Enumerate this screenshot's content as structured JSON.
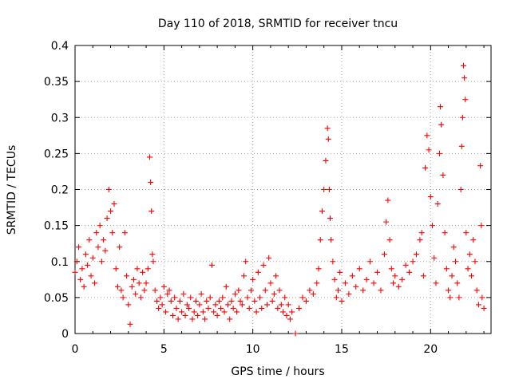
{
  "chart_data": {
    "type": "scatter",
    "title": "Day 110 of 2018, SRMTID for receiver tncu",
    "xlabel": "GPS time / hours",
    "ylabel": "SRMTID / TECUs",
    "xlim": [
      0,
      23.4
    ],
    "ylim": [
      0,
      0.4
    ],
    "grid": true,
    "marker": "plus",
    "color": "#ff0000",
    "x_ticks": [
      {
        "value": 0,
        "label": "0"
      },
      {
        "value": 5,
        "label": "5"
      },
      {
        "value": 10,
        "label": "10"
      },
      {
        "value": 15,
        "label": "15"
      },
      {
        "value": 20,
        "label": "20"
      }
    ],
    "y_ticks": [
      {
        "value": 0,
        "label": "0"
      },
      {
        "value": 0.05,
        "label": "0.05"
      },
      {
        "value": 0.1,
        "label": "0.1"
      },
      {
        "value": 0.15,
        "label": "0.15"
      },
      {
        "value": 0.2,
        "label": "0.2"
      },
      {
        "value": 0.25,
        "label": "0.25"
      },
      {
        "value": 0.3,
        "label": "0.3"
      },
      {
        "value": 0.35,
        "label": "0.35"
      },
      {
        "value": 0.4,
        "label": "0.4"
      }
    ],
    "series": [
      {
        "name": "SRMTID",
        "points": [
          [
            0.0,
            0.085
          ],
          [
            0.1,
            0.1
          ],
          [
            0.2,
            0.12
          ],
          [
            0.3,
            0.075
          ],
          [
            0.4,
            0.09
          ],
          [
            0.5,
            0.065
          ],
          [
            0.6,
            0.11
          ],
          [
            0.7,
            0.095
          ],
          [
            0.8,
            0.13
          ],
          [
            0.9,
            0.08
          ],
          [
            1.0,
            0.105
          ],
          [
            1.1,
            0.07
          ],
          [
            1.2,
            0.14
          ],
          [
            1.3,
            0.12
          ],
          [
            1.4,
            0.15
          ],
          [
            1.5,
            0.1
          ],
          [
            1.6,
            0.13
          ],
          [
            1.7,
            0.115
          ],
          [
            1.8,
            0.16
          ],
          [
            1.9,
            0.2
          ],
          [
            2.0,
            0.17
          ],
          [
            2.1,
            0.14
          ],
          [
            2.2,
            0.18
          ],
          [
            2.3,
            0.09
          ],
          [
            2.4,
            0.065
          ],
          [
            2.5,
            0.12
          ],
          [
            2.6,
            0.06
          ],
          [
            2.7,
            0.05
          ],
          [
            2.8,
            0.14
          ],
          [
            2.9,
            0.08
          ],
          [
            3.0,
            0.04
          ],
          [
            3.1,
            0.013
          ],
          [
            3.2,
            0.065
          ],
          [
            3.3,
            0.075
          ],
          [
            3.4,
            0.055
          ],
          [
            3.5,
            0.09
          ],
          [
            3.6,
            0.07
          ],
          [
            3.7,
            0.05
          ],
          [
            3.8,
            0.085
          ],
          [
            3.9,
            0.06
          ],
          [
            4.0,
            0.07
          ],
          [
            4.1,
            0.09
          ],
          [
            4.2,
            0.245
          ],
          [
            4.25,
            0.21
          ],
          [
            4.3,
            0.17
          ],
          [
            4.35,
            0.11
          ],
          [
            4.4,
            0.1
          ],
          [
            4.5,
            0.06
          ],
          [
            4.6,
            0.045
          ],
          [
            4.7,
            0.035
          ],
          [
            4.8,
            0.05
          ],
          [
            4.9,
            0.04
          ],
          [
            5.0,
            0.065
          ],
          [
            5.1,
            0.03
          ],
          [
            5.2,
            0.055
          ],
          [
            5.3,
            0.06
          ],
          [
            5.4,
            0.045
          ],
          [
            5.5,
            0.025
          ],
          [
            5.6,
            0.05
          ],
          [
            5.7,
            0.035
          ],
          [
            5.8,
            0.02
          ],
          [
            5.9,
            0.045
          ],
          [
            6.0,
            0.03
          ],
          [
            6.1,
            0.055
          ],
          [
            6.2,
            0.025
          ],
          [
            6.3,
            0.04
          ],
          [
            6.4,
            0.035
          ],
          [
            6.5,
            0.05
          ],
          [
            6.6,
            0.02
          ],
          [
            6.7,
            0.03
          ],
          [
            6.8,
            0.045
          ],
          [
            6.9,
            0.025
          ],
          [
            7.0,
            0.04
          ],
          [
            7.1,
            0.055
          ],
          [
            7.2,
            0.03
          ],
          [
            7.3,
            0.02
          ],
          [
            7.4,
            0.045
          ],
          [
            7.5,
            0.035
          ],
          [
            7.6,
            0.05
          ],
          [
            7.7,
            0.095
          ],
          [
            7.8,
            0.03
          ],
          [
            7.9,
            0.04
          ],
          [
            8.0,
            0.025
          ],
          [
            8.1,
            0.045
          ],
          [
            8.2,
            0.035
          ],
          [
            8.3,
            0.05
          ],
          [
            8.4,
            0.03
          ],
          [
            8.5,
            0.065
          ],
          [
            8.6,
            0.04
          ],
          [
            8.7,
            0.02
          ],
          [
            8.8,
            0.045
          ],
          [
            8.9,
            0.035
          ],
          [
            9.0,
            0.055
          ],
          [
            9.1,
            0.03
          ],
          [
            9.2,
            0.06
          ],
          [
            9.3,
            0.045
          ],
          [
            9.4,
            0.04
          ],
          [
            9.5,
            0.08
          ],
          [
            9.6,
            0.1
          ],
          [
            9.7,
            0.05
          ],
          [
            9.8,
            0.035
          ],
          [
            9.9,
            0.06
          ],
          [
            10.0,
            0.075
          ],
          [
            10.1,
            0.045
          ],
          [
            10.2,
            0.03
          ],
          [
            10.3,
            0.085
          ],
          [
            10.4,
            0.05
          ],
          [
            10.5,
            0.035
          ],
          [
            10.6,
            0.095
          ],
          [
            10.7,
            0.06
          ],
          [
            10.8,
            0.04
          ],
          [
            10.9,
            0.105
          ],
          [
            11.0,
            0.07
          ],
          [
            11.1,
            0.045
          ],
          [
            11.2,
            0.055
          ],
          [
            11.3,
            0.08
          ],
          [
            11.4,
            0.035
          ],
          [
            11.5,
            0.06
          ],
          [
            11.6,
            0.04
          ],
          [
            11.7,
            0.03
          ],
          [
            11.8,
            0.05
          ],
          [
            11.9,
            0.025
          ],
          [
            12.0,
            0.04
          ],
          [
            12.1,
            0.02
          ],
          [
            12.2,
            0.03
          ],
          [
            12.4,
            0.0
          ],
          [
            12.6,
            0.035
          ],
          [
            12.8,
            0.05
          ],
          [
            13.0,
            0.045
          ],
          [
            13.2,
            0.06
          ],
          [
            13.4,
            0.055
          ],
          [
            13.6,
            0.07
          ],
          [
            13.7,
            0.09
          ],
          [
            13.8,
            0.13
          ],
          [
            13.9,
            0.17
          ],
          [
            14.0,
            0.2
          ],
          [
            14.1,
            0.24
          ],
          [
            14.2,
            0.285
          ],
          [
            14.25,
            0.27
          ],
          [
            14.3,
            0.2
          ],
          [
            14.35,
            0.16
          ],
          [
            14.4,
            0.13
          ],
          [
            14.5,
            0.1
          ],
          [
            14.6,
            0.075
          ],
          [
            14.7,
            0.05
          ],
          [
            14.8,
            0.06
          ],
          [
            14.9,
            0.085
          ],
          [
            15.0,
            0.045
          ],
          [
            15.2,
            0.07
          ],
          [
            15.4,
            0.055
          ],
          [
            15.6,
            0.08
          ],
          [
            15.8,
            0.065
          ],
          [
            16.0,
            0.09
          ],
          [
            16.2,
            0.06
          ],
          [
            16.4,
            0.075
          ],
          [
            16.6,
            0.1
          ],
          [
            16.8,
            0.07
          ],
          [
            17.0,
            0.085
          ],
          [
            17.2,
            0.06
          ],
          [
            17.4,
            0.11
          ],
          [
            17.5,
            0.155
          ],
          [
            17.6,
            0.185
          ],
          [
            17.7,
            0.13
          ],
          [
            17.8,
            0.09
          ],
          [
            17.9,
            0.07
          ],
          [
            18.0,
            0.08
          ],
          [
            18.2,
            0.065
          ],
          [
            18.4,
            0.075
          ],
          [
            18.6,
            0.095
          ],
          [
            18.8,
            0.085
          ],
          [
            19.0,
            0.1
          ],
          [
            19.2,
            0.11
          ],
          [
            19.4,
            0.13
          ],
          [
            19.5,
            0.14
          ],
          [
            19.6,
            0.08
          ],
          [
            19.7,
            0.23
          ],
          [
            19.8,
            0.275
          ],
          [
            19.9,
            0.255
          ],
          [
            20.0,
            0.19
          ],
          [
            20.1,
            0.15
          ],
          [
            20.2,
            0.105
          ],
          [
            20.3,
            0.07
          ],
          [
            20.4,
            0.18
          ],
          [
            20.5,
            0.25
          ],
          [
            20.55,
            0.315
          ],
          [
            20.6,
            0.29
          ],
          [
            20.7,
            0.22
          ],
          [
            20.8,
            0.14
          ],
          [
            20.9,
            0.09
          ],
          [
            21.0,
            0.06
          ],
          [
            21.1,
            0.05
          ],
          [
            21.2,
            0.08
          ],
          [
            21.3,
            0.12
          ],
          [
            21.4,
            0.1
          ],
          [
            21.5,
            0.07
          ],
          [
            21.6,
            0.05
          ],
          [
            21.7,
            0.2
          ],
          [
            21.75,
            0.26
          ],
          [
            21.8,
            0.3
          ],
          [
            21.85,
            0.372
          ],
          [
            21.9,
            0.355
          ],
          [
            21.95,
            0.325
          ],
          [
            22.0,
            0.14
          ],
          [
            22.1,
            0.09
          ],
          [
            22.2,
            0.11
          ],
          [
            22.3,
            0.08
          ],
          [
            22.4,
            0.13
          ],
          [
            22.5,
            0.1
          ],
          [
            22.6,
            0.06
          ],
          [
            22.7,
            0.04
          ],
          [
            22.8,
            0.233
          ],
          [
            22.85,
            0.15
          ],
          [
            22.9,
            0.05
          ],
          [
            23.0,
            0.035
          ]
        ]
      }
    ]
  }
}
